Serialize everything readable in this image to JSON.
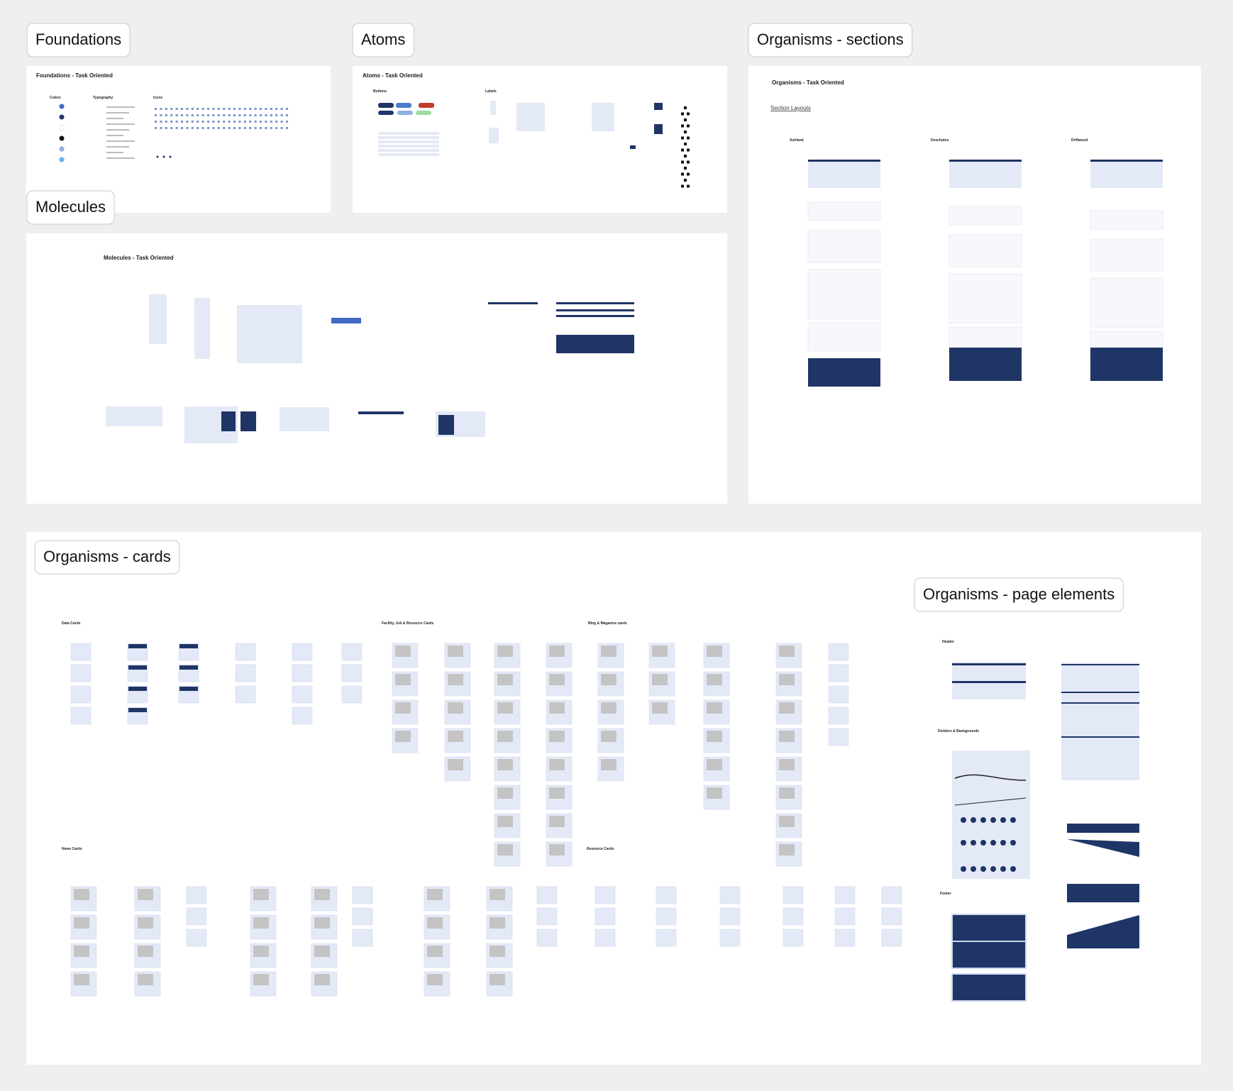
{
  "labels": {
    "foundations": "Foundations",
    "atoms": "Atoms",
    "organisms_sections": "Organisms - sections",
    "molecules": "Molecules",
    "organisms_cards": "Organisms - cards",
    "organisms_page_elements": "Organisms - page elements"
  },
  "foundations": {
    "title": "Foundations - Task Oriented",
    "headings": [
      "Colors",
      "Typography",
      "Icons"
    ]
  },
  "atoms": {
    "title": "Atoms - Task Oriented",
    "headings": [
      "Buttons",
      "Labels"
    ]
  },
  "molecules": {
    "title": "Molecules - Task Oriented"
  },
  "sections": {
    "title": "Organisms - Task Oriented",
    "link": "Section Layouts",
    "columns": [
      "Ashland",
      "Deschutes",
      "Driftwood"
    ]
  },
  "cards": {
    "groups": [
      "Data Cards",
      "Facility, Job & Resource Cards",
      "Blog & Magazine cards",
      "News Cards",
      "Resource Cards"
    ]
  },
  "page_elements": {
    "groups": [
      "Header",
      "Dividers & Backgrounds",
      "Footer"
    ]
  }
}
